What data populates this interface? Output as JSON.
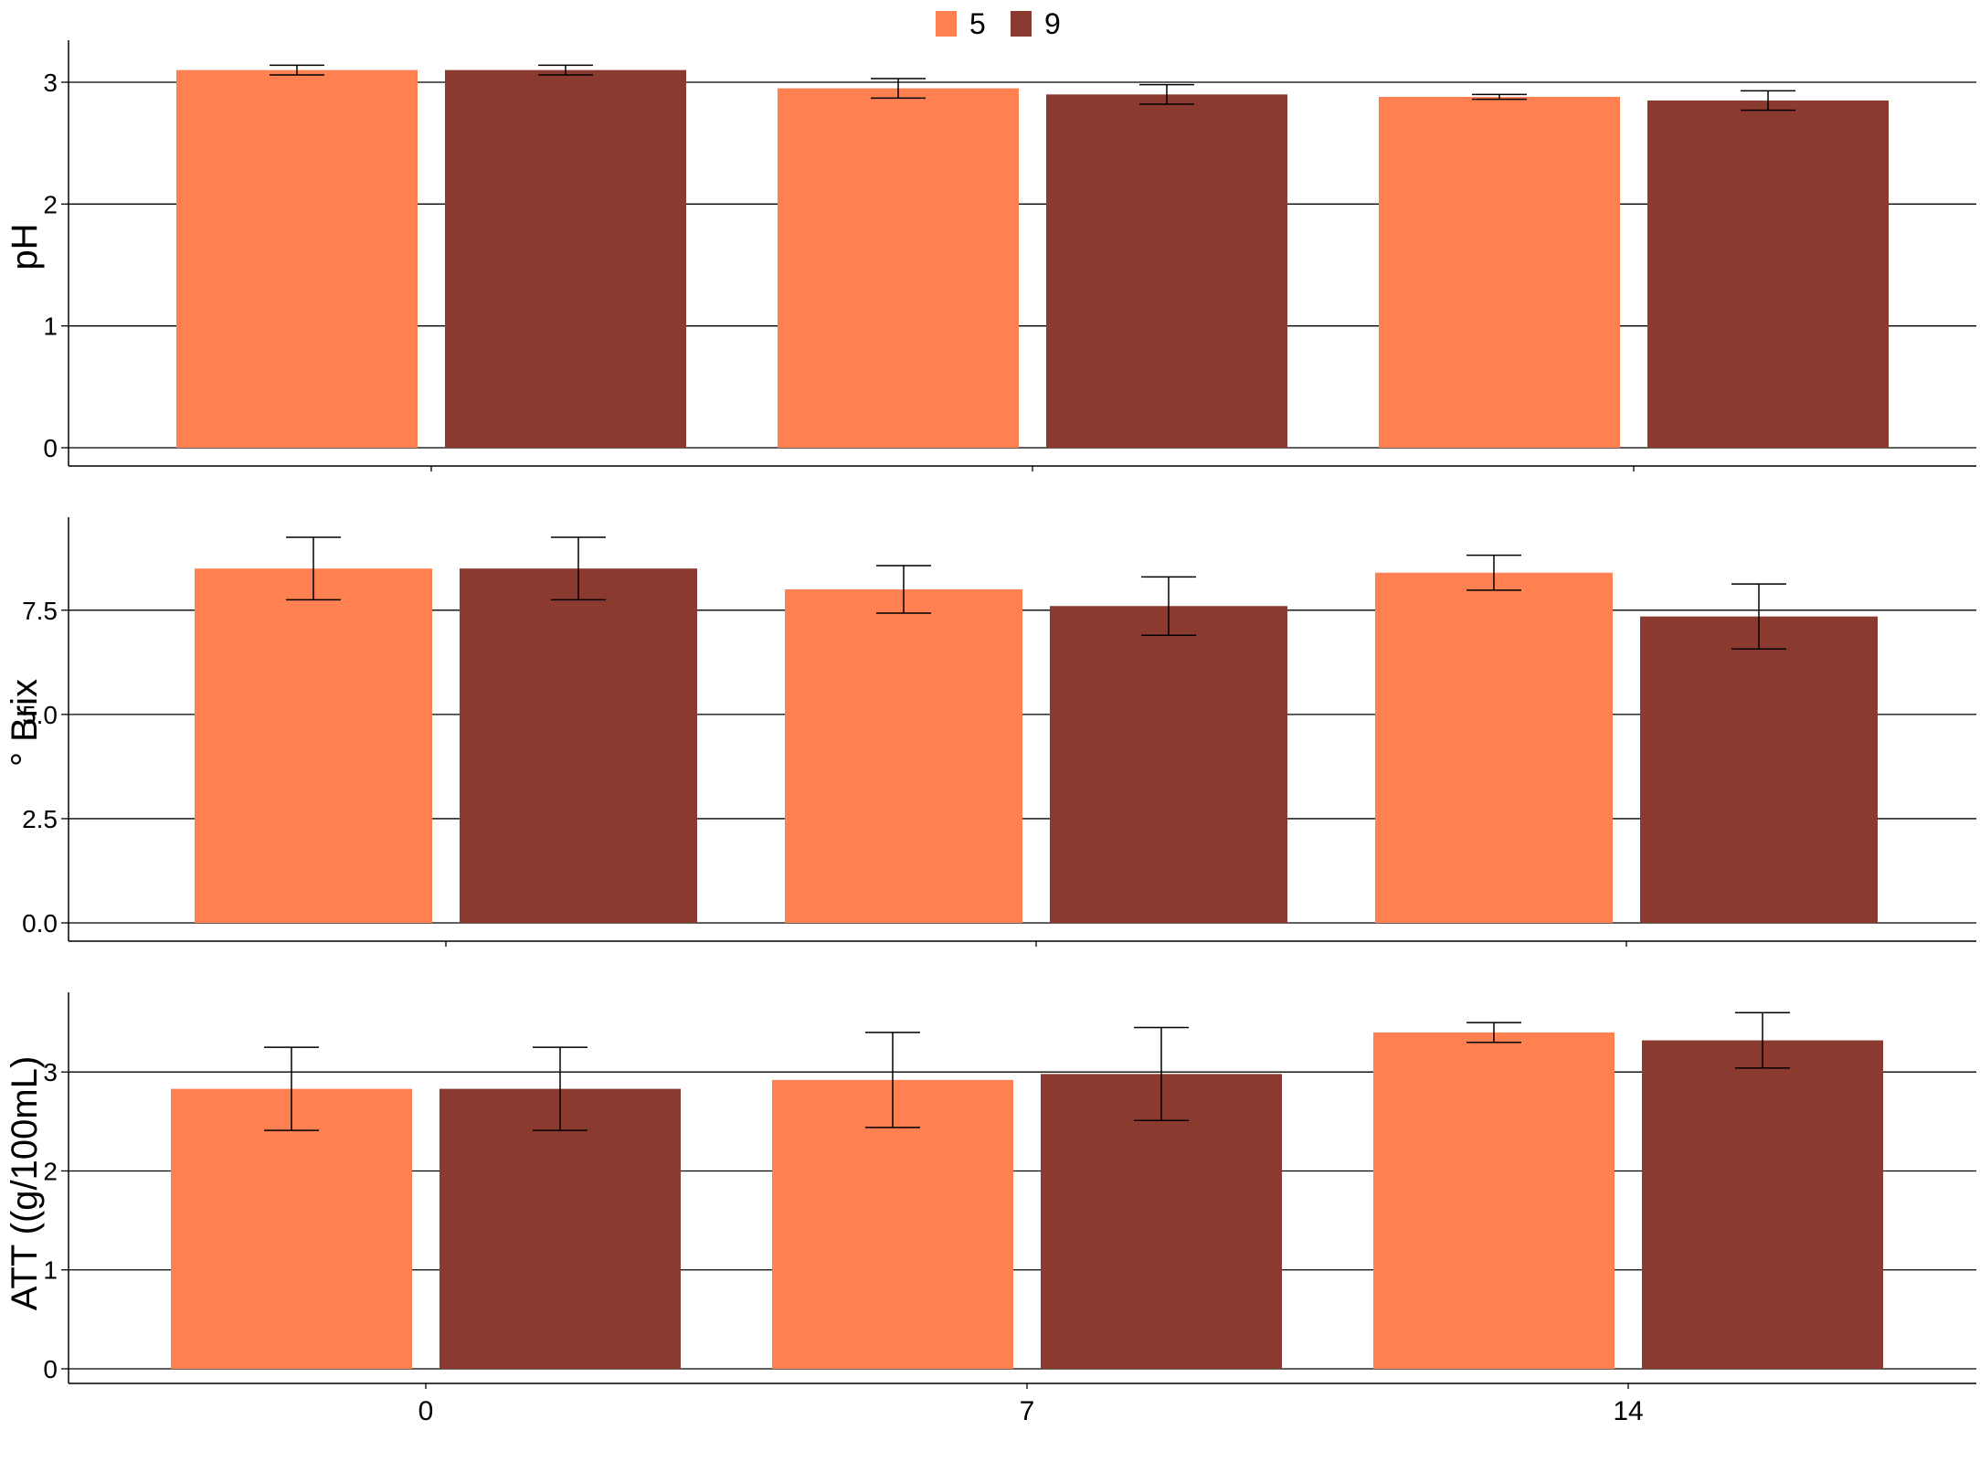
{
  "colors": {
    "series_5": "#ff8050",
    "series_9": "#8b3a2f",
    "axis": "#000000",
    "grid": "#000000"
  },
  "legend": {
    "items": [
      {
        "label": "5"
      },
      {
        "label": "9"
      }
    ]
  },
  "chart_data": [
    {
      "type": "bar",
      "ylabel": "pH",
      "categories": [
        "0",
        "7",
        "14"
      ],
      "ylim": [
        0,
        3.3
      ],
      "yticks": [
        "0",
        "1",
        "2",
        "3"
      ],
      "show_x_tick_labels": false,
      "series": [
        {
          "name": "5",
          "values": [
            3.1,
            2.95,
            2.88
          ],
          "errors": [
            0.04,
            0.08,
            0.02
          ]
        },
        {
          "name": "9",
          "values": [
            3.1,
            2.9,
            2.85
          ],
          "errors": [
            0.04,
            0.08,
            0.08
          ]
        }
      ]
    },
    {
      "type": "bar",
      "ylabel": "° Brix",
      "categories": [
        "0",
        "7",
        "14"
      ],
      "ylim": [
        0,
        9.6
      ],
      "yticks": [
        "0.0",
        "2.5",
        "5.0",
        "7.5"
      ],
      "show_x_tick_labels": false,
      "series": [
        {
          "name": "5",
          "values": [
            8.5,
            8.0,
            8.4
          ],
          "errors": [
            0.75,
            0.57,
            0.42
          ]
        },
        {
          "name": "9",
          "values": [
            8.5,
            7.6,
            7.35
          ],
          "errors": [
            0.75,
            0.7,
            0.78
          ]
        }
      ]
    },
    {
      "type": "bar",
      "ylabel": "ATT ((g/100mL)",
      "categories": [
        "0",
        "7",
        "14"
      ],
      "ylim": [
        0,
        3.75
      ],
      "yticks": [
        "0",
        "1",
        "2",
        "3"
      ],
      "show_x_tick_labels": true,
      "series": [
        {
          "name": "5",
          "values": [
            2.83,
            2.92,
            3.4
          ],
          "errors": [
            0.42,
            0.48,
            0.1
          ]
        },
        {
          "name": "9",
          "values": [
            2.83,
            2.98,
            3.32
          ],
          "errors": [
            0.42,
            0.47,
            0.28
          ]
        }
      ]
    }
  ]
}
